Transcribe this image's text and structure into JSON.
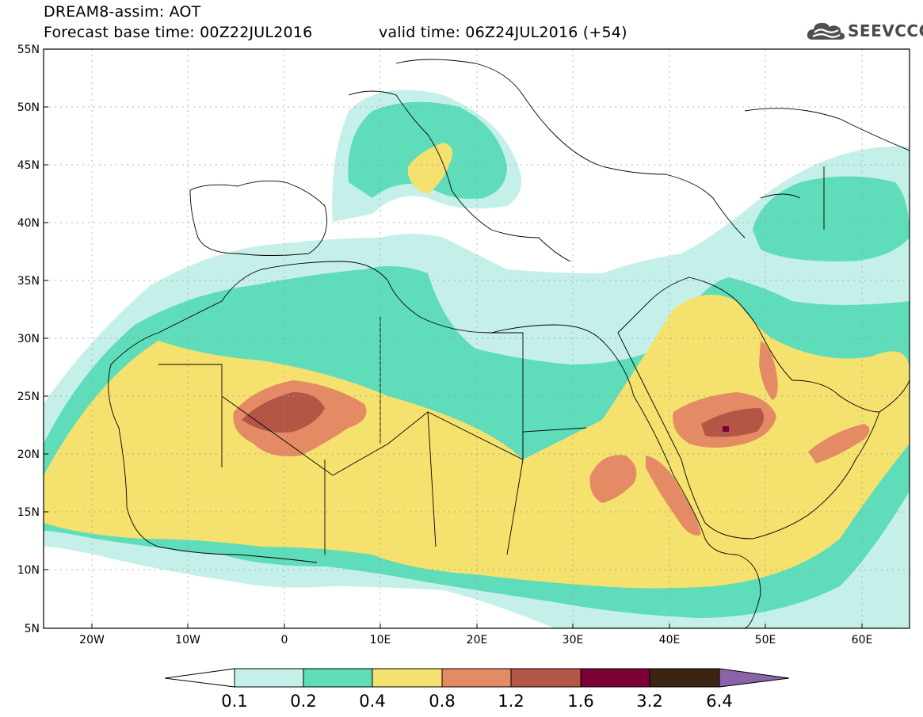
{
  "header": {
    "line1": "DREAM8-assim: AOT",
    "line2": "Forecast base time: 00Z22JUL2016",
    "line3": "valid time: 06Z24JUL2016 (+54)"
  },
  "logo": {
    "text": "SEEVCCC",
    "icon": "cloud-icon"
  },
  "map": {
    "variable": "AOT",
    "lon_range": [
      -25,
      65
    ],
    "lat_range": [
      5,
      55
    ],
    "lat_labels": [
      "55N",
      "50N",
      "45N",
      "40N",
      "35N",
      "30N",
      "25N",
      "20N",
      "15N",
      "10N",
      "5N"
    ],
    "lon_labels": [
      "20W",
      "10W",
      "0",
      "10E",
      "20E",
      "30E",
      "40E",
      "50E",
      "60E"
    ]
  },
  "colorbar": {
    "labels": [
      "0.1",
      "0.2",
      "0.4",
      "0.8",
      "1.2",
      "1.6",
      "3.2",
      "6.4"
    ],
    "colors": [
      "#ffffff",
      "#c4f0e9",
      "#5fdcb9",
      "#f5e16e",
      "#e48a64",
      "#b35645",
      "#7b0034",
      "#3b2413",
      "#8a64a8"
    ]
  }
}
